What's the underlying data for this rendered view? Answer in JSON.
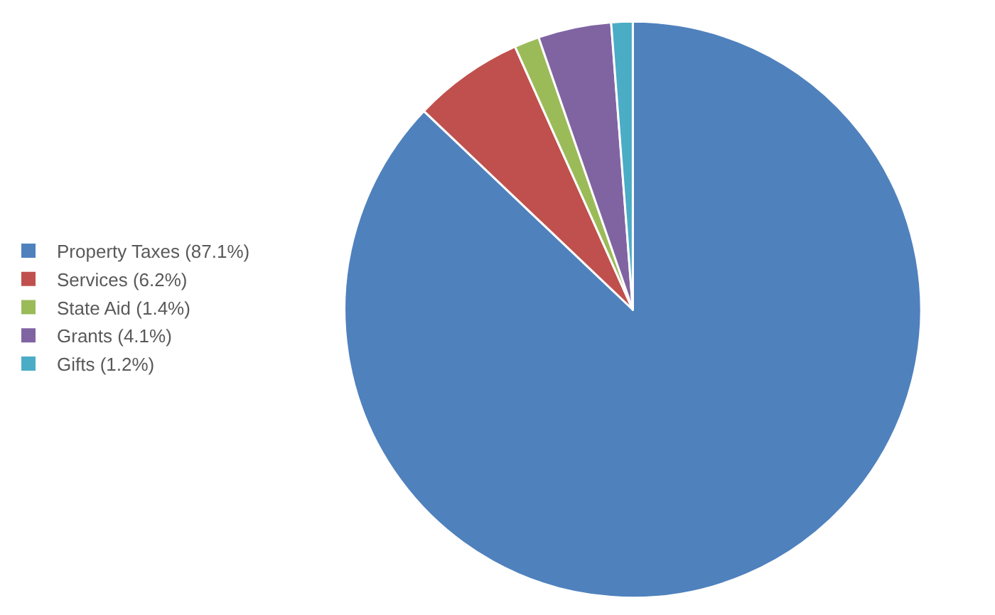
{
  "chart_data": {
    "type": "pie",
    "categories": [
      "Property Taxes (87.1%)",
      "Services (6.2%)",
      "State Aid (1.4%)",
      "Grants (4.1%)",
      "Gifts (1.2%)"
    ],
    "values": [
      87.1,
      6.2,
      1.4,
      4.1,
      1.2
    ],
    "colors": [
      "#4f81bd",
      "#c0504d",
      "#9bbb59",
      "#8064a2",
      "#4bacc6"
    ],
    "legend": "left"
  }
}
